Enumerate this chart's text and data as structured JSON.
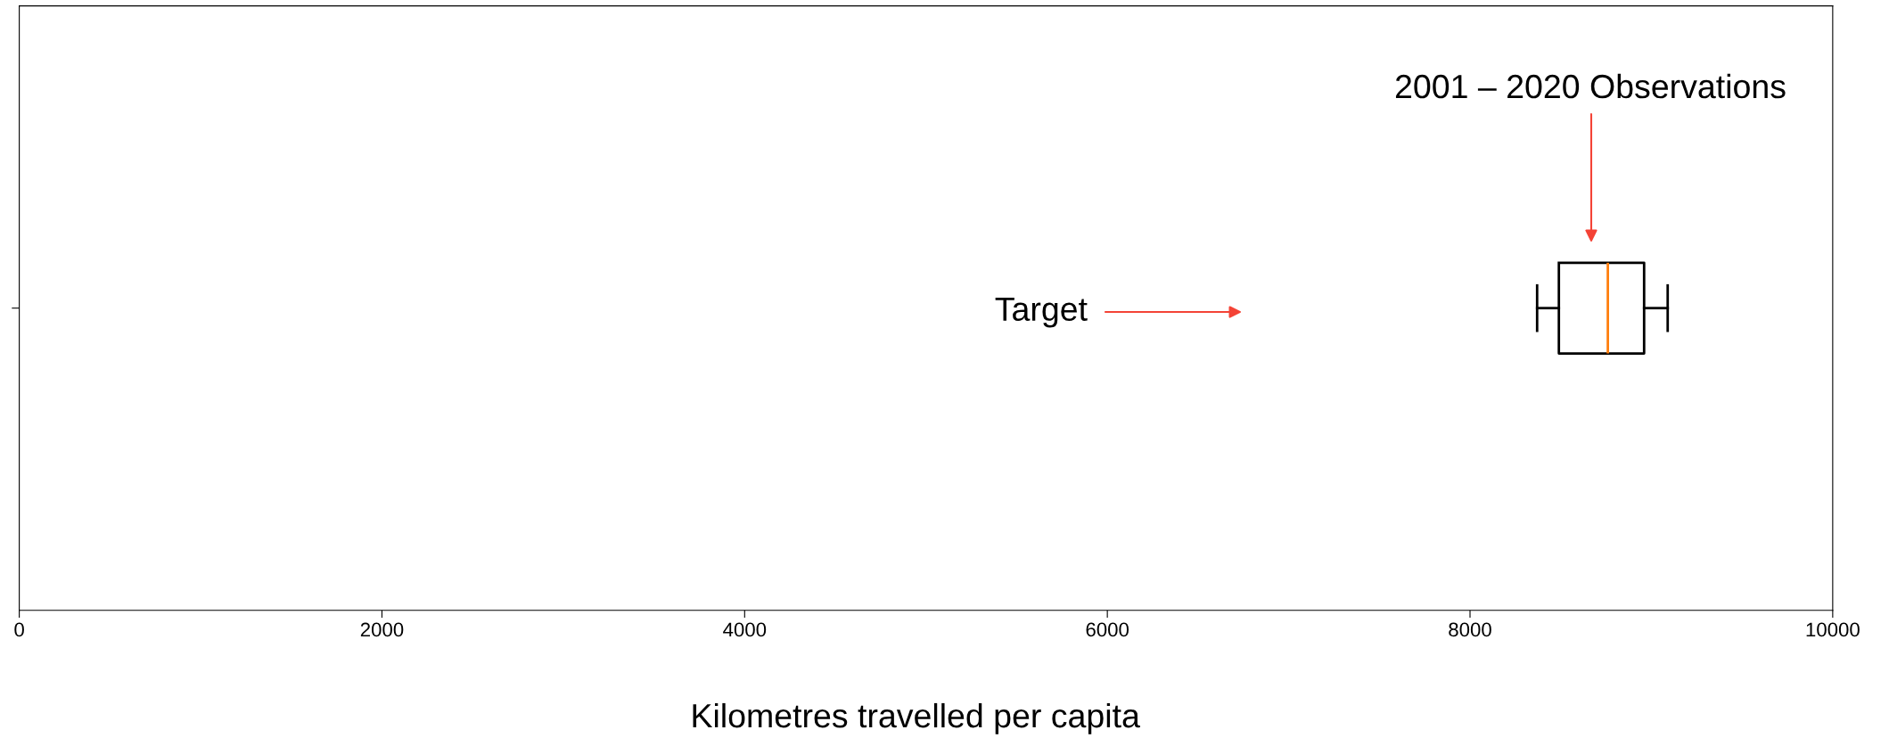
{
  "chart_data": {
    "type": "box",
    "categories": [
      null
    ],
    "orientation": "horizontal",
    "boxes": [
      {
        "low": 8370,
        "q1": 8490,
        "median": 8760,
        "q3": 8960,
        "high": 9090
      }
    ],
    "xlabel": "Kilometres travelled per capita",
    "xlim": [
      0,
      10000
    ],
    "xticks": [
      0,
      2000,
      4000,
      6000,
      8000,
      10000
    ],
    "annotations": [
      "Target",
      "2001 – 2020 Observations"
    ],
    "grid": false
  }
}
